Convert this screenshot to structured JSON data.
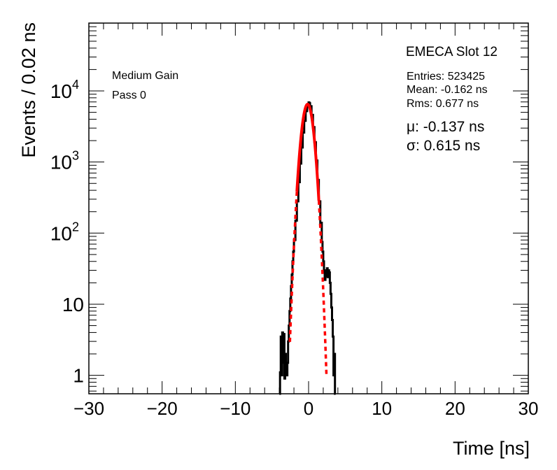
{
  "chart_data": {
    "type": "histogram",
    "title": "EMECA Slot 12",
    "xlabel": "Time [ns]",
    "ylabel": "Events / 0.02 ns",
    "xlim": [
      -30,
      30
    ],
    "ylim": [
      0.55,
      90000
    ],
    "yscale": "log",
    "x_ticks": [
      -30,
      -20,
      -10,
      0,
      10,
      20,
      30
    ],
    "x_tick_labels": [
      "−30",
      "−20",
      "−10",
      "0",
      "10",
      "20",
      "30"
    ],
    "y_ticks": [
      {
        "value": 1,
        "base": "1",
        "exp": ""
      },
      {
        "value": 10,
        "base": "10",
        "exp": ""
      },
      {
        "value": 100,
        "base": "10",
        "exp": "2"
      },
      {
        "value": 1000,
        "base": "10",
        "exp": "3"
      },
      {
        "value": 10000,
        "base": "10",
        "exp": "4"
      }
    ],
    "labels": {
      "gain": "Medium Gain",
      "pass": "Pass 0"
    },
    "stats": {
      "entries": "Entries: 523425",
      "mean": "Mean: -0.162 ns",
      "rms": "Rms: 0.677 ns"
    },
    "fit_results": {
      "mu": "μ: -0.137 ns",
      "sigma": "σ: 0.615 ns"
    },
    "series": [
      {
        "name": "data",
        "style": "histogram",
        "color": "#000000",
        "points": [
          [
            -4.0,
            0.55
          ],
          [
            -3.9,
            1.1
          ],
          [
            -3.8,
            3.5
          ],
          [
            -3.7,
            1.0
          ],
          [
            -3.6,
            4.0
          ],
          [
            -3.5,
            1.5
          ],
          [
            -3.4,
            3.8
          ],
          [
            -3.3,
            0.9
          ],
          [
            -3.2,
            2.0
          ],
          [
            -3.1,
            1.2
          ],
          [
            -3.0,
            1.0
          ],
          [
            -2.9,
            1.5
          ],
          [
            -2.8,
            3.0
          ],
          [
            -2.7,
            5.0
          ],
          [
            -2.6,
            8.0
          ],
          [
            -2.5,
            12
          ],
          [
            -2.4,
            18
          ],
          [
            -2.3,
            26
          ],
          [
            -2.2,
            40
          ],
          [
            -2.1,
            55
          ],
          [
            -2.0,
            80
          ],
          [
            -1.8,
            150
          ],
          [
            -1.6,
            280
          ],
          [
            -1.4,
            520
          ],
          [
            -1.2,
            950
          ],
          [
            -1.0,
            1600
          ],
          [
            -0.8,
            2600
          ],
          [
            -0.6,
            3800
          ],
          [
            -0.4,
            5200
          ],
          [
            -0.2,
            6300
          ],
          [
            0.0,
            6900
          ],
          [
            0.1,
            6700
          ],
          [
            0.2,
            6100
          ],
          [
            0.4,
            4600
          ],
          [
            0.6,
            3100
          ],
          [
            0.8,
            1900
          ],
          [
            1.0,
            1050
          ],
          [
            1.2,
            560
          ],
          [
            1.4,
            280
          ],
          [
            1.6,
            140
          ],
          [
            1.8,
            75
          ],
          [
            1.9,
            55
          ],
          [
            2.0,
            40
          ],
          [
            2.1,
            30
          ],
          [
            2.2,
            22
          ],
          [
            2.3,
            30
          ],
          [
            2.4,
            25
          ],
          [
            2.5,
            32
          ],
          [
            2.6,
            24
          ],
          [
            2.7,
            30
          ],
          [
            2.8,
            28
          ],
          [
            2.9,
            20
          ],
          [
            3.0,
            14
          ],
          [
            3.1,
            9
          ],
          [
            3.2,
            6
          ],
          [
            3.3,
            3.5
          ],
          [
            3.4,
            1.0
          ],
          [
            3.5,
            2.0
          ],
          [
            3.6,
            0.55
          ]
        ]
      },
      {
        "name": "gaussian fit",
        "style": "fit",
        "color": "#ff0000",
        "amplitude": 6500,
        "mu": -0.137,
        "sigma": 0.615,
        "solid_range": [
          -1.6,
          1.4
        ],
        "dashed_range": [
          -2.55,
          2.45
        ]
      }
    ]
  }
}
